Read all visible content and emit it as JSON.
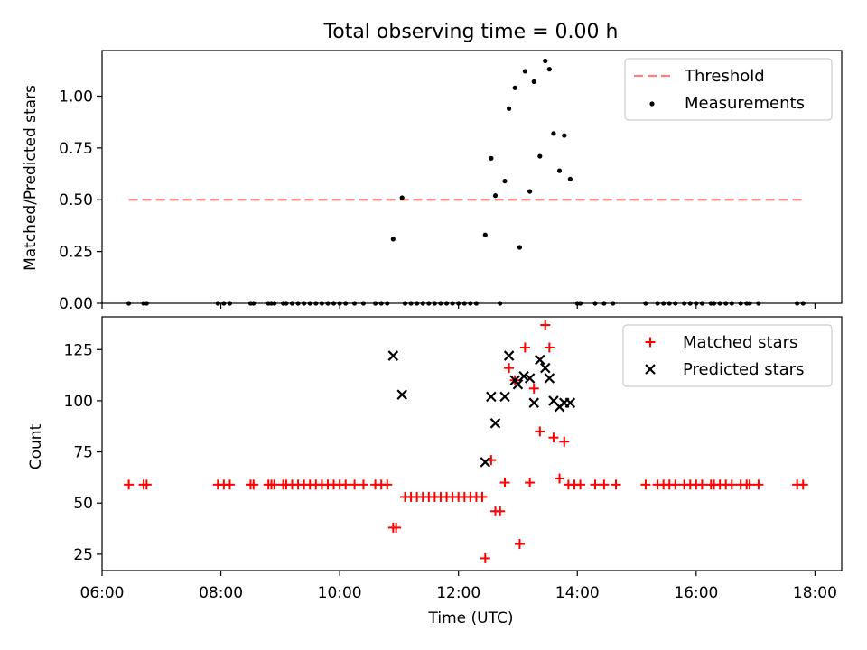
{
  "figure": {
    "title": "Total observing time = 0.00 h"
  },
  "colors": {
    "threshold": "#ff7f7f",
    "measurements": "#000000",
    "matched": "#ff0000",
    "predicted": "#000000"
  },
  "chart_data": [
    {
      "type": "scatter",
      "name": "top-panel",
      "ylabel": "Matched/Predicted stars",
      "xlabel": "",
      "xlim": [
        6.0,
        18.45
      ],
      "ylim": [
        0.0,
        1.22
      ],
      "xticks": [
        6,
        8,
        10,
        12,
        14,
        16,
        18
      ],
      "yticks": [
        {
          "value": 0.0,
          "label": "0.00"
        },
        {
          "value": 0.25,
          "label": "0.25"
        },
        {
          "value": 0.5,
          "label": "0.50"
        },
        {
          "value": 0.75,
          "label": "0.75"
        },
        {
          "value": 1.0,
          "label": "1.00"
        }
      ],
      "legend": {
        "placement": "top-right",
        "entries": [
          "Threshold",
          "Measurements"
        ]
      },
      "threshold": {
        "name": "Threshold",
        "value": 0.5,
        "x": [
          6.45,
          17.8
        ]
      },
      "measurements": {
        "name": "Measurements",
        "points": [
          [
            6.45,
            0
          ],
          [
            6.7,
            0
          ],
          [
            6.75,
            0
          ],
          [
            7.95,
            0
          ],
          [
            8.05,
            0
          ],
          [
            8.15,
            0
          ],
          [
            8.5,
            0
          ],
          [
            8.55,
            0
          ],
          [
            8.8,
            0
          ],
          [
            8.85,
            0
          ],
          [
            8.9,
            0
          ],
          [
            9.05,
            0
          ],
          [
            9.1,
            0
          ],
          [
            9.2,
            0
          ],
          [
            9.3,
            0
          ],
          [
            9.4,
            0
          ],
          [
            9.5,
            0
          ],
          [
            9.6,
            0
          ],
          [
            9.7,
            0
          ],
          [
            9.8,
            0
          ],
          [
            9.9,
            0
          ],
          [
            10.0,
            0
          ],
          [
            10.1,
            0
          ],
          [
            10.25,
            0
          ],
          [
            10.4,
            0
          ],
          [
            10.6,
            0
          ],
          [
            10.7,
            0
          ],
          [
            10.8,
            0
          ],
          [
            10.9,
            0.31
          ],
          [
            11.05,
            0.51
          ],
          [
            11.1,
            0
          ],
          [
            11.2,
            0
          ],
          [
            11.3,
            0
          ],
          [
            11.4,
            0
          ],
          [
            11.5,
            0
          ],
          [
            11.6,
            0
          ],
          [
            11.7,
            0
          ],
          [
            11.8,
            0
          ],
          [
            11.9,
            0
          ],
          [
            12.0,
            0
          ],
          [
            12.1,
            0
          ],
          [
            12.2,
            0
          ],
          [
            12.3,
            0
          ],
          [
            12.7,
            0
          ],
          [
            12.45,
            0.33
          ],
          [
            12.55,
            0.7
          ],
          [
            12.62,
            0.52
          ],
          [
            12.78,
            0.59
          ],
          [
            12.85,
            0.94
          ],
          [
            12.95,
            1.04
          ],
          [
            13.03,
            0.27
          ],
          [
            13.12,
            1.12
          ],
          [
            13.2,
            0.54
          ],
          [
            13.27,
            1.07
          ],
          [
            13.37,
            0.71
          ],
          [
            13.46,
            1.17
          ],
          [
            13.53,
            1.13
          ],
          [
            13.6,
            0.82
          ],
          [
            13.7,
            0.64
          ],
          [
            13.78,
            0.81
          ],
          [
            13.88,
            0.6
          ],
          [
            14.0,
            0
          ],
          [
            14.05,
            0
          ],
          [
            14.3,
            0
          ],
          [
            14.45,
            0
          ],
          [
            14.6,
            0
          ],
          [
            15.15,
            0
          ],
          [
            15.35,
            0
          ],
          [
            15.45,
            0
          ],
          [
            15.55,
            0
          ],
          [
            15.65,
            0
          ],
          [
            15.8,
            0
          ],
          [
            15.9,
            0
          ],
          [
            16.0,
            0
          ],
          [
            16.1,
            0
          ],
          [
            16.25,
            0
          ],
          [
            16.3,
            0
          ],
          [
            16.4,
            0
          ],
          [
            16.5,
            0
          ],
          [
            16.6,
            0
          ],
          [
            16.75,
            0
          ],
          [
            16.85,
            0
          ],
          [
            16.9,
            0
          ],
          [
            17.05,
            0
          ],
          [
            17.7,
            0
          ],
          [
            17.8,
            0
          ]
        ]
      }
    },
    {
      "type": "scatter",
      "name": "bottom-panel",
      "xlabel": "Time (UTC)",
      "ylabel": "Count",
      "xlim": [
        6.0,
        18.45
      ],
      "ylim": [
        17,
        141
      ],
      "xticks": [
        {
          "value": 6,
          "label": "06:00"
        },
        {
          "value": 8,
          "label": "08:00"
        },
        {
          "value": 10,
          "label": "10:00"
        },
        {
          "value": 12,
          "label": "12:00"
        },
        {
          "value": 14,
          "label": "14:00"
        },
        {
          "value": 16,
          "label": "16:00"
        },
        {
          "value": 18,
          "label": "18:00"
        }
      ],
      "yticks": [
        {
          "value": 25,
          "label": "25"
        },
        {
          "value": 50,
          "label": "50"
        },
        {
          "value": 75,
          "label": "75"
        },
        {
          "value": 100,
          "label": "100"
        },
        {
          "value": 125,
          "label": "125"
        }
      ],
      "legend": {
        "placement": "top-right",
        "entries": [
          "Matched stars",
          "Predicted stars"
        ]
      },
      "series": [
        {
          "name": "Matched stars",
          "marker": "plus",
          "points": [
            [
              6.45,
              59
            ],
            [
              6.7,
              59
            ],
            [
              6.75,
              59
            ],
            [
              7.95,
              59
            ],
            [
              8.05,
              59
            ],
            [
              8.15,
              59
            ],
            [
              8.5,
              59
            ],
            [
              8.55,
              59
            ],
            [
              8.8,
              59
            ],
            [
              8.85,
              59
            ],
            [
              8.9,
              59
            ],
            [
              9.05,
              59
            ],
            [
              9.1,
              59
            ],
            [
              9.2,
              59
            ],
            [
              9.3,
              59
            ],
            [
              9.4,
              59
            ],
            [
              9.5,
              59
            ],
            [
              9.6,
              59
            ],
            [
              9.7,
              59
            ],
            [
              9.8,
              59
            ],
            [
              9.9,
              59
            ],
            [
              10.0,
              59
            ],
            [
              10.1,
              59
            ],
            [
              10.25,
              59
            ],
            [
              10.4,
              59
            ],
            [
              10.6,
              59
            ],
            [
              10.7,
              59
            ],
            [
              10.8,
              59
            ],
            [
              10.9,
              38
            ],
            [
              10.95,
              38
            ],
            [
              11.1,
              53
            ],
            [
              11.2,
              53
            ],
            [
              11.3,
              53
            ],
            [
              11.4,
              53
            ],
            [
              11.5,
              53
            ],
            [
              11.6,
              53
            ],
            [
              11.7,
              53
            ],
            [
              11.8,
              53
            ],
            [
              11.9,
              53
            ],
            [
              12.0,
              53
            ],
            [
              12.1,
              53
            ],
            [
              12.2,
              53
            ],
            [
              12.3,
              53
            ],
            [
              12.4,
              53
            ],
            [
              12.45,
              23
            ],
            [
              12.55,
              71
            ],
            [
              12.62,
              46
            ],
            [
              12.7,
              46
            ],
            [
              12.78,
              60
            ],
            [
              12.85,
              116
            ],
            [
              12.95,
              110
            ],
            [
              13.03,
              30
            ],
            [
              13.12,
              126
            ],
            [
              13.2,
              60
            ],
            [
              13.27,
              106
            ],
            [
              13.37,
              85
            ],
            [
              13.46,
              137
            ],
            [
              13.53,
              126
            ],
            [
              13.6,
              82
            ],
            [
              13.7,
              62
            ],
            [
              13.78,
              80
            ],
            [
              13.85,
              59
            ],
            [
              13.95,
              59
            ],
            [
              14.05,
              59
            ],
            [
              14.3,
              59
            ],
            [
              14.45,
              59
            ],
            [
              14.65,
              59
            ],
            [
              15.15,
              59
            ],
            [
              15.35,
              59
            ],
            [
              15.45,
              59
            ],
            [
              15.55,
              59
            ],
            [
              15.65,
              59
            ],
            [
              15.8,
              59
            ],
            [
              15.9,
              59
            ],
            [
              16.0,
              59
            ],
            [
              16.1,
              59
            ],
            [
              16.25,
              59
            ],
            [
              16.3,
              59
            ],
            [
              16.4,
              59
            ],
            [
              16.5,
              59
            ],
            [
              16.6,
              59
            ],
            [
              16.75,
              59
            ],
            [
              16.85,
              59
            ],
            [
              16.9,
              59
            ],
            [
              17.05,
              59
            ],
            [
              17.7,
              59
            ],
            [
              17.8,
              59
            ]
          ]
        },
        {
          "name": "Predicted stars",
          "marker": "x",
          "points": [
            [
              10.9,
              122
            ],
            [
              11.05,
              103
            ],
            [
              12.45,
              70
            ],
            [
              12.55,
              102
            ],
            [
              12.62,
              89
            ],
            [
              12.78,
              102
            ],
            [
              12.85,
              122
            ],
            [
              12.95,
              110
            ],
            [
              13.0,
              108
            ],
            [
              13.1,
              112
            ],
            [
              13.2,
              111
            ],
            [
              13.27,
              99
            ],
            [
              13.37,
              120
            ],
            [
              13.46,
              116
            ],
            [
              13.53,
              111
            ],
            [
              13.6,
              100
            ],
            [
              13.7,
              97
            ],
            [
              13.78,
              99
            ],
            [
              13.88,
              99
            ]
          ]
        }
      ]
    }
  ]
}
